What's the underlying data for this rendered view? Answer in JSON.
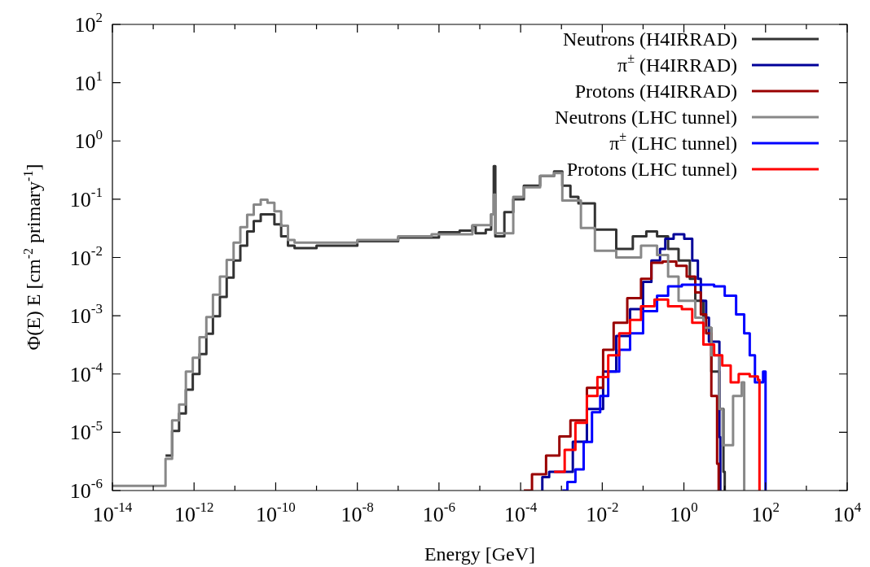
{
  "chart_data": {
    "type": "step",
    "xlabel": "Energy [GeV]",
    "ylabel": "Φ(E) E  [cm$^{-2}$ primary$^{-1}$]",
    "log": "xy",
    "grid": false,
    "legend": "top right",
    "marker": "none",
    "line_style": "solid",
    "xlim": [
      1e-14,
      10000
    ],
    "ylim": [
      1e-06,
      100
    ],
    "xticks": [
      {
        "value": 1e-14,
        "label": "10$^{-14}$"
      },
      {
        "value": 1e-13,
        "label": null
      },
      {
        "value": 1e-12,
        "label": "10$^{-12}$"
      },
      {
        "value": 1e-11,
        "label": null
      },
      {
        "value": 1e-10,
        "label": "10$^{-10}$"
      },
      {
        "value": 1e-09,
        "label": null
      },
      {
        "value": 1e-08,
        "label": "10$^{-8}$"
      },
      {
        "value": 1e-07,
        "label": null
      },
      {
        "value": 1e-06,
        "label": "10$^{-6}$"
      },
      {
        "value": 1e-05,
        "label": null
      },
      {
        "value": 0.0001,
        "label": "10$^{-4}$"
      },
      {
        "value": 0.001,
        "label": null
      },
      {
        "value": 0.01,
        "label": "10$^{-2}$"
      },
      {
        "value": 0.1,
        "label": null
      },
      {
        "value": 1,
        "label": "10$^{0}$"
      },
      {
        "value": 10,
        "label": null
      },
      {
        "value": 100,
        "label": "10$^{2}$"
      },
      {
        "value": 1000,
        "label": null
      },
      {
        "value": 10000,
        "label": "10$^{4}$"
      }
    ],
    "yticks": [
      {
        "value": 1e-06,
        "label": "10$^{-6}$"
      },
      {
        "value": 1e-05,
        "label": "10$^{-5}$"
      },
      {
        "value": 0.0001,
        "label": "10$^{-4}$"
      },
      {
        "value": 0.001,
        "label": "10$^{-3}$"
      },
      {
        "value": 0.01,
        "label": "10$^{-2}$"
      },
      {
        "value": 0.1,
        "label": "10$^{-1}$"
      },
      {
        "value": 1,
        "label": "10$^{0}$"
      },
      {
        "value": 10,
        "label": "10$^{1}$"
      },
      {
        "value": 100,
        "label": "10$^{2}$"
      }
    ],
    "series": [
      {
        "name": "Neutrons (H4IRRAD)",
        "color": "#333333",
        "x": [
          2e-13,
          2.9e-13,
          4.3e-13,
          6.3e-13,
          9.3e-13,
          1.36e-12,
          2e-12,
          2.9e-12,
          4.3e-12,
          6.3e-12,
          9.3e-12,
          1.36e-11,
          2e-11,
          2.9e-11,
          4.3e-11,
          6.3e-11,
          9.3e-11,
          1.36e-10,
          2e-10,
          2.9e-10,
          1e-09,
          1e-08,
          1e-07,
          1e-06,
          3.2e-06,
          6.6e-06,
          7.9e-06,
          1.4e-05,
          1.9e-05,
          2.2e-05,
          2.4e-05,
          4e-05,
          6.6e-05,
          0.00012,
          0.0003,
          0.00066,
          0.00105,
          0.00166,
          0.0026,
          0.0066,
          0.022,
          0.056,
          0.12,
          0.22,
          0.41,
          0.74,
          1.4,
          1.9,
          3,
          4.7,
          7.4,
          9.3,
          10
        ],
        "values": [
          4e-06,
          1.05e-05,
          2.1e-05,
          5.4e-05,
          0.0001,
          0.00022,
          0.00049,
          0.00098,
          0.0021,
          0.0045,
          0.0089,
          0.016,
          0.028,
          0.042,
          0.055,
          0.055,
          0.037,
          0.023,
          0.016,
          0.0145,
          0.016,
          0.019,
          0.022,
          0.027,
          0.029,
          0.035,
          0.026,
          0.03,
          0.055,
          0.37,
          0.023,
          0.06,
          0.1,
          0.17,
          0.25,
          0.3,
          0.17,
          0.11,
          0.085,
          0.03,
          0.014,
          0.023,
          0.028,
          0.023,
          0.014,
          0.0089,
          0.0043,
          0.0018,
          0.00062,
          0.00011,
          2.5e-05,
          2.1e-06,
          1e-06
        ]
      },
      {
        "name": "π$^{±}$ (H4IRRAD)",
        "color": "#000099",
        "x": [
          0.00033,
          0.00034,
          0.0005,
          0.0019,
          0.0042,
          0.0105,
          0.022,
          0.048,
          0.1,
          0.16,
          0.26,
          0.35,
          0.56,
          1.02,
          1.6,
          2.2,
          2.6,
          3.5,
          4.1,
          7.4,
          7.8
        ],
        "values": [
          1e-06,
          1.7e-06,
          2.1e-06,
          6.9e-06,
          2.5e-05,
          0.00011,
          0.00045,
          0.0013,
          0.0038,
          0.0089,
          0.014,
          0.021,
          0.025,
          0.021,
          0.0089,
          0.0043,
          0.0018,
          0.00093,
          0.00036,
          8.3e-06,
          1e-06
        ]
      },
      {
        "name": "Protons (H4IRRAD)",
        "color": "#990000",
        "x": [
          0.00012,
          0.00019,
          0.00042,
          0.00089,
          0.00166,
          0.0042,
          0.0105,
          0.019,
          0.041,
          0.089,
          0.16,
          0.3,
          0.65,
          1.17,
          1.9,
          2.6,
          3.5,
          4.7,
          6.5,
          7.1
        ],
        "values": [
          1e-06,
          1.9e-06,
          4e-06,
          8.5e-06,
          1.6e-05,
          5.8e-05,
          0.00026,
          0.00076,
          0.002,
          0.0043,
          0.0081,
          0.0085,
          0.0072,
          0.0047,
          0.0025,
          0.00105,
          0.0005,
          4.2e-05,
          2.9e-06,
          1e-06
        ]
      },
      {
        "name": "Neutrons (LHC tunnel)",
        "color": "#888888",
        "x": [
          1e-14,
          2e-13,
          2.9e-13,
          4.3e-13,
          6.3e-13,
          9.3e-13,
          1.36e-12,
          2e-12,
          2.9e-12,
          4.3e-12,
          6.3e-12,
          9.3e-12,
          1.36e-11,
          2e-11,
          2.9e-11,
          4.3e-11,
          6.3e-11,
          9.3e-11,
          1.36e-10,
          2e-10,
          2.9e-10,
          1e-09,
          1e-08,
          1e-07,
          6.6e-07,
          6.6e-06,
          1.9e-05,
          2.2e-05,
          2.4e-05,
          6.6e-05,
          0.00012,
          0.0003,
          0.00066,
          0.00105,
          0.003,
          0.0066,
          0.022,
          0.089,
          0.22,
          0.41,
          0.74,
          1.9,
          3,
          4.7,
          7.4,
          8.9,
          16,
          26,
          30
        ],
        "values": [
          1.2e-06,
          3.5e-06,
          1.6e-05,
          3e-05,
          0.00011,
          0.00019,
          0.00043,
          0.00095,
          0.0023,
          0.0047,
          0.0091,
          0.018,
          0.033,
          0.054,
          0.081,
          0.098,
          0.087,
          0.062,
          0.035,
          0.02,
          0.018,
          0.018,
          0.02,
          0.023,
          0.025,
          0.036,
          0.055,
          0.12,
          0.026,
          0.11,
          0.16,
          0.25,
          0.28,
          0.095,
          0.032,
          0.013,
          0.01,
          0.016,
          0.011,
          0.0047,
          0.0018,
          0.00093,
          0.00062,
          0.00021,
          2.5e-05,
          6e-06,
          4.2e-05,
          7.2e-05,
          1e-06
        ]
      },
      {
        "name": "π$^{±}$ (LHC tunnel)",
        "color": "#0000ff",
        "x": [
          0.00105,
          0.0014,
          0.0022,
          0.0035,
          0.0056,
          0.0089,
          0.014,
          0.026,
          0.048,
          0.1,
          0.22,
          0.41,
          0.89,
          2.6,
          5.5,
          10,
          19,
          30,
          41,
          55,
          87,
          100
        ],
        "values": [
          1e-06,
          1.4e-06,
          2.3e-06,
          6.8e-06,
          2.2e-05,
          4.2e-05,
          0.00011,
          0.00026,
          0.0005,
          0.0012,
          0.0022,
          0.0032,
          0.0034,
          0.0034,
          0.0032,
          0.0022,
          0.00105,
          0.0005,
          0.00021,
          7.2e-05,
          0.00011,
          1e-06
        ]
      },
      {
        "name": "Protons (LHC tunnel)",
        "color": "#ff0000",
        "x": [
          0.00066,
          0.0012,
          0.0022,
          0.0042,
          0.0076,
          0.014,
          0.026,
          0.048,
          0.089,
          0.19,
          0.41,
          0.89,
          1.6,
          3,
          5.5,
          8.7,
          14,
          22,
          41,
          65,
          71
        ],
        "values": [
          2.1e-06,
          5e-06,
          1.45e-05,
          4.2e-05,
          8.9e-05,
          0.00021,
          0.0005,
          0.00085,
          0.00145,
          0.0019,
          0.00145,
          0.0013,
          0.00076,
          0.00032,
          0.00021,
          0.00014,
          7.2e-05,
          0.0001,
          9.1e-05,
          7.9e-05,
          1e-06
        ]
      }
    ]
  }
}
